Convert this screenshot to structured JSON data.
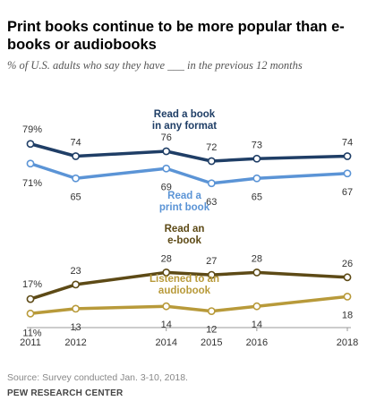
{
  "title": "Print books continue to be more popular than e-books or audiobooks",
  "subtitle": "% of U.S. adults who say they have ___ in the previous 12 months",
  "source": "Source: Survey conducted Jan. 3-10, 2018.",
  "brand": "PEW RESEARCH CENTER",
  "colors": {
    "any_format": "#1f3e66",
    "print": "#5b94d6",
    "ebook": "#5d4a16",
    "audiobook": "#b89a3a",
    "axis": "#999999",
    "value_label": "#333333"
  },
  "chart_data": {
    "type": "line",
    "x": [
      2011,
      2012,
      2014,
      2015,
      2016,
      2018
    ],
    "xlabels": [
      "2011",
      "2012",
      "2014",
      "2015",
      "2016",
      "2018"
    ],
    "series": [
      {
        "key": "any_format",
        "name": "Read a book in any format",
        "name_lines": [
          "Read a book",
          "in any format"
        ],
        "values": [
          79,
          74,
          76,
          72,
          73,
          74
        ]
      },
      {
        "key": "print",
        "name": "Read a print book",
        "name_lines": [
          "Read a",
          "print book"
        ],
        "values": [
          71,
          65,
          69,
          63,
          65,
          67
        ]
      },
      {
        "key": "ebook",
        "name": "Read an e-book",
        "name_lines": [
          "Read an",
          "e-book"
        ],
        "values": [
          17,
          23,
          28,
          27,
          28,
          26
        ]
      },
      {
        "key": "audiobook",
        "name": "Listened to an audiobook",
        "name_lines": [
          "Listened to an",
          "audiobook"
        ],
        "values": [
          11,
          13,
          14,
          12,
          14,
          18
        ]
      }
    ],
    "ylim": [
      0,
      100
    ],
    "grid": false
  }
}
